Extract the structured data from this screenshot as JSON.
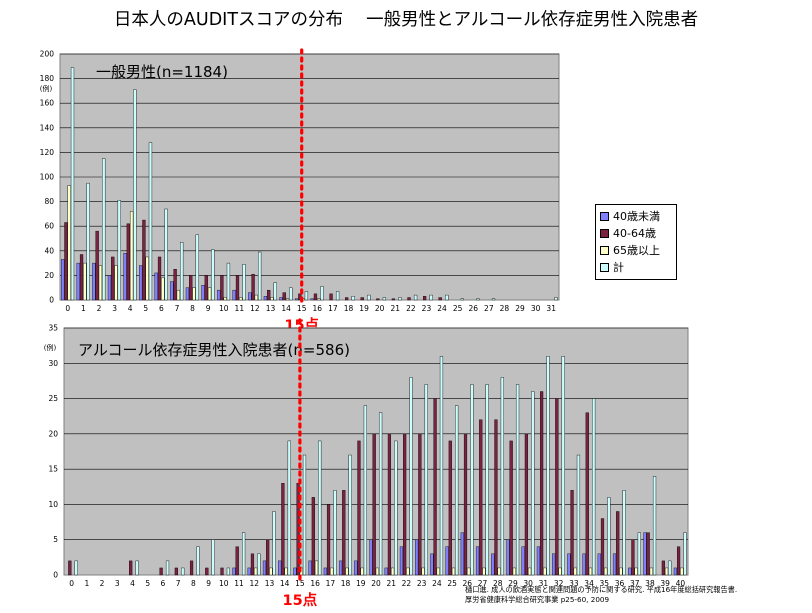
{
  "page": {
    "title": "日本人のAUDITスコアの分布　 一般男性とアルコール依存症男性入院患者",
    "reference": "樋口進. 成人の飲酒実態と関連問題の予防に関する研究. 平成16年度総括研究報告書.\n厚労省健康科学総合研究事業 p25-60, 2009"
  },
  "legend": {
    "items": [
      {
        "label": "40歳未満",
        "color": "#8080ff"
      },
      {
        "label": "40-64歳",
        "color": "#7a2242"
      },
      {
        "label": "65歳以上",
        "color": "#ffffc8"
      },
      {
        "label": "計",
        "color": "#ccfcfc"
      }
    ]
  },
  "chart_data": [
    {
      "type": "bar",
      "title": "一般男性(n=1184)",
      "ylabel": "(例)",
      "ylim": [
        0,
        200
      ],
      "yticks": [
        0,
        20,
        40,
        60,
        80,
        100,
        120,
        140,
        160,
        180,
        200
      ],
      "categories": [
        "0",
        "1",
        "2",
        "3",
        "4",
        "5",
        "6",
        "7",
        "8",
        "9",
        "10",
        "11",
        "12",
        "13",
        "14",
        "15",
        "16",
        "17",
        "18",
        "19",
        "20",
        "21",
        "22",
        "23",
        "24",
        "25",
        "26",
        "27",
        "28",
        "29",
        "30",
        "31"
      ],
      "grid": true,
      "reference_line": {
        "x": "15",
        "label": "15点",
        "color": "#ff0000"
      },
      "series": [
        {
          "name": "40歳未満",
          "color": "#8080ff",
          "values": [
            33,
            30,
            30,
            20,
            38,
            28,
            22,
            15,
            10,
            12,
            8,
            8,
            6,
            3,
            2,
            1,
            1,
            0,
            0,
            0,
            0,
            0,
            0,
            0,
            0,
            0,
            0,
            0,
            0,
            0,
            0,
            0
          ]
        },
        {
          "name": "40-64歳",
          "color": "#7a2242",
          "values": [
            63,
            37,
            56,
            35,
            62,
            65,
            35,
            25,
            20,
            20,
            20,
            20,
            21,
            8,
            6,
            5,
            5,
            5,
            2,
            2,
            1,
            1,
            2,
            3,
            2,
            0,
            0,
            0,
            0,
            0,
            0,
            0
          ]
        },
        {
          "name": "65歳以上",
          "color": "#ffffc8",
          "values": [
            93,
            30,
            28,
            28,
            72,
            35,
            18,
            8,
            10,
            10,
            2,
            2,
            4,
            2,
            1,
            1,
            1,
            0,
            0,
            0,
            0,
            0,
            0,
            0,
            0,
            0,
            0,
            0,
            0,
            0,
            0,
            0
          ]
        },
        {
          "name": "計",
          "color": "#ccfcfc",
          "values": [
            189,
            95,
            115,
            81,
            171,
            128,
            74,
            47,
            53,
            41,
            30,
            29,
            39,
            14,
            10,
            7,
            11,
            7,
            3,
            4,
            2,
            2,
            4,
            4,
            4,
            1,
            1,
            1,
            0,
            0,
            0,
            2
          ]
        }
      ]
    },
    {
      "type": "bar",
      "title": "アルコール依存症男性入院患者(n=586)",
      "ylabel": "(例)",
      "ylim": [
        0,
        35
      ],
      "yticks": [
        0,
        5,
        10,
        15,
        20,
        25,
        30,
        35
      ],
      "categories": [
        "0",
        "1",
        "2",
        "3",
        "4",
        "5",
        "6",
        "7",
        "8",
        "9",
        "10",
        "11",
        "12",
        "13",
        "14",
        "15",
        "16",
        "17",
        "18",
        "19",
        "20",
        "21",
        "22",
        "23",
        "24",
        "25",
        "26",
        "27",
        "28",
        "29",
        "30",
        "31",
        "32",
        "33",
        "34",
        "35",
        "36",
        "37",
        "38",
        "39",
        "40"
      ],
      "grid": true,
      "reference_line": {
        "x": "15",
        "label": "15点",
        "color": "#ff0000"
      },
      "series": [
        {
          "name": "40歳未満",
          "color": "#8080ff",
          "values": [
            0,
            0,
            0,
            0,
            0,
            0,
            0,
            0,
            0,
            0,
            0,
            1,
            1,
            2,
            2,
            1,
            2,
            1,
            2,
            2,
            5,
            1,
            4,
            5,
            3,
            4,
            6,
            4,
            3,
            5,
            4,
            4,
            3,
            3,
            3,
            3,
            3,
            1,
            6,
            0,
            1
          ]
        },
        {
          "name": "40-64歳",
          "color": "#7a2242",
          "values": [
            2,
            0,
            0,
            0,
            2,
            0,
            1,
            1,
            2,
            1,
            1,
            4,
            3,
            5,
            13,
            13,
            11,
            10,
            12,
            19,
            20,
            20,
            20,
            20,
            25,
            19,
            20,
            22,
            22,
            19,
            20,
            26,
            25,
            12,
            23,
            8,
            9,
            5,
            6,
            2,
            4
          ]
        },
        {
          "name": "65歳以上",
          "color": "#ffffc8",
          "values": [
            0,
            0,
            0,
            0,
            0,
            0,
            0,
            0,
            0,
            0,
            0,
            0,
            1,
            1,
            1,
            1,
            2,
            1,
            1,
            1,
            1,
            1,
            1,
            1,
            1,
            1,
            1,
            1,
            1,
            1,
            1,
            1,
            1,
            1,
            1,
            1,
            1,
            1,
            1,
            1,
            1
          ]
        },
        {
          "name": "計",
          "color": "#ccfcfc",
          "values": [
            2,
            0,
            0,
            0,
            2,
            0,
            2,
            1,
            4,
            5,
            1,
            6,
            3,
            9,
            19,
            17,
            19,
            12,
            17,
            24,
            23,
            19,
            28,
            27,
            31,
            24,
            27,
            27,
            28,
            27,
            26,
            31,
            31,
            17,
            25,
            11,
            12,
            6,
            14,
            2,
            6
          ]
        }
      ]
    }
  ]
}
